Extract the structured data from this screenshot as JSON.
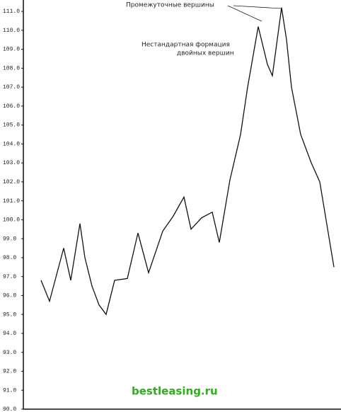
{
  "chart_data": {
    "type": "line",
    "annotations": [
      "Промежуточные вершины",
      "Нестандартная формация",
      "двойных вершин"
    ],
    "watermark": "bestleasing.ru",
    "x": [
      25,
      37,
      47,
      57,
      67,
      80,
      87,
      97,
      107,
      117,
      129,
      147,
      162,
      177,
      197,
      212,
      227,
      237,
      252,
      267,
      277,
      292,
      307,
      317,
      332,
      345,
      352,
      365,
      372,
      379,
      392,
      407,
      419,
      439
    ],
    "series": [
      {
        "name": null,
        "color": "#111111",
        "values": [
          96.8,
          95.7,
          97.1,
          98.5,
          96.8,
          99.8,
          98.0,
          96.5,
          95.5,
          95.0,
          96.8,
          96.9,
          99.3,
          97.2,
          99.4,
          100.2,
          101.2,
          99.5,
          100.1,
          100.4,
          98.8,
          102.1,
          104.5,
          107.0,
          110.2,
          108.2,
          107.6,
          111.2,
          109.5,
          107.0,
          104.5,
          103.0,
          102.0,
          97.5
        ]
      }
    ],
    "xlim": [
      0,
      449
    ],
    "ylim": [
      90,
      111.6
    ],
    "yticks": [
      {
        "value": 90,
        "label": "90.0"
      },
      {
        "value": 91,
        "label": "91.0"
      },
      {
        "value": 92,
        "label": "92.0"
      },
      {
        "value": 93,
        "label": "93.0"
      },
      {
        "value": 94,
        "label": "94.0"
      },
      {
        "value": 95,
        "label": "95.0"
      },
      {
        "value": 96,
        "label": "96.0"
      },
      {
        "value": 97,
        "label": "97.0"
      },
      {
        "value": 98,
        "label": "98.0"
      },
      {
        "value": 99,
        "label": "99.0"
      },
      {
        "value": 100,
        "label": "100.0"
      },
      {
        "value": 101,
        "label": "101.0"
      },
      {
        "value": 102,
        "label": "102.0"
      },
      {
        "value": 103,
        "label": "103.0"
      },
      {
        "value": 104,
        "label": "104.0"
      },
      {
        "value": 105,
        "label": "105.0"
      },
      {
        "value": 106,
        "label": "106.0"
      },
      {
        "value": 107,
        "label": "107.0"
      },
      {
        "value": 108,
        "label": "108.0"
      },
      {
        "value": 109,
        "label": "109.0"
      },
      {
        "value": 110,
        "label": "110.0"
      },
      {
        "value": 111,
        "label": "111.0"
      }
    ]
  }
}
